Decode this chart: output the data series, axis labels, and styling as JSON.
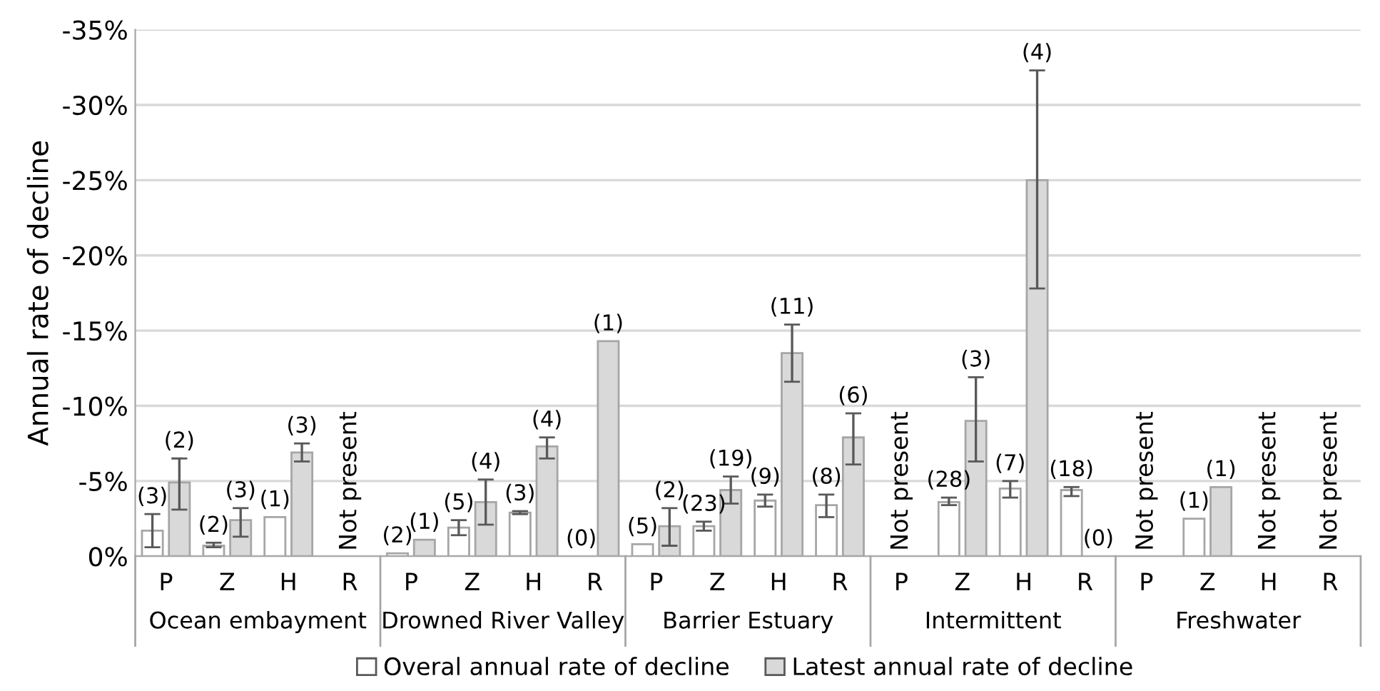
{
  "chart_data": {
    "type": "bar",
    "ylabel": "Annual rate of decline",
    "categories": [
      "P",
      "Z",
      "H",
      "R",
      "P",
      "Z",
      "H",
      "R",
      "P",
      "Z",
      "H",
      "R",
      "P",
      "Z",
      "H",
      "R",
      "P",
      "Z",
      "H",
      "R"
    ],
    "annotations": [
      "(3)",
      "(2)",
      "(2)",
      "(3)",
      "(1)",
      "(3)",
      "Not present",
      "(2)",
      "(1)",
      "(5)",
      "(4)",
      "(3)",
      "(4)",
      "(0)",
      "(1)",
      "(5)",
      "(2)",
      "(23)",
      "(19)",
      "(9)",
      "(11)",
      "(8)",
      "(6)",
      "Not present",
      "(28)",
      "(3)",
      "(7)",
      "(4)",
      "(18)",
      "(0)",
      "Not present",
      "(1)",
      "(1)",
      "Not present",
      "Not present",
      "Ocean embayment",
      "Drowned River Valley",
      "Barrier Estuary",
      "Intermittent",
      "Freshwater"
    ],
    "series": [
      {
        "name": "Overal annual rate of decline",
        "color": "#ffffff",
        "values": [
          -1.7,
          -0.7,
          -2.6,
          null,
          -0.2,
          -1.9,
          -2.9,
          null,
          -0.8,
          -2.0,
          -3.7,
          -3.4,
          null,
          -3.6,
          -4.5,
          -4.4,
          null,
          -2.5,
          null,
          null
        ],
        "errors": [
          [
            -2.8,
            -0.6
          ],
          [
            -0.9,
            -0.6
          ],
          null,
          null,
          null,
          [
            -2.4,
            -1.4
          ],
          [
            -3.0,
            -2.8
          ],
          null,
          null,
          [
            -2.3,
            -1.7
          ],
          [
            -4.1,
            -3.3
          ],
          [
            -4.1,
            -2.6
          ],
          null,
          [
            -3.9,
            -3.4
          ],
          [
            -5.0,
            -3.9
          ],
          [
            -4.6,
            -4.0
          ],
          null,
          null,
          null,
          null
        ]
      },
      {
        "name": "Latest annual rate of decline",
        "color": "#d9d9d9",
        "values": [
          -4.9,
          -2.4,
          -6.9,
          null,
          -1.1,
          -3.6,
          -7.3,
          -14.3,
          -2.0,
          -4.4,
          -13.5,
          -7.9,
          null,
          -9.0,
          -25.0,
          null,
          null,
          -4.6,
          null,
          null
        ],
        "errors": [
          [
            -6.5,
            -3.1
          ],
          [
            -3.2,
            -1.3
          ],
          [
            -7.5,
            -6.3
          ],
          null,
          null,
          [
            -5.1,
            -2.1
          ],
          [
            -7.9,
            -6.5
          ],
          null,
          [
            -3.2,
            -0.7
          ],
          [
            -5.3,
            -3.5
          ],
          [
            -15.4,
            -11.6
          ],
          [
            -9.5,
            -6.1
          ],
          null,
          [
            -11.9,
            -6.3
          ],
          [
            -32.3,
            -17.8
          ],
          null,
          null,
          null,
          null,
          null
        ]
      }
    ],
    "ylim": [
      0,
      -35
    ],
    "yticks": [
      {
        "value": 0,
        "label": "0%"
      },
      {
        "value": -5,
        "label": "-5%"
      },
      {
        "value": -10,
        "label": "-10%"
      },
      {
        "value": -15,
        "label": "-15%"
      },
      {
        "value": -20,
        "label": "-20%"
      },
      {
        "value": -25,
        "label": "-25%"
      },
      {
        "value": -30,
        "label": "-30%"
      },
      {
        "value": -35,
        "label": "-35%"
      }
    ],
    "grid": "y",
    "legend": "bottom"
  }
}
